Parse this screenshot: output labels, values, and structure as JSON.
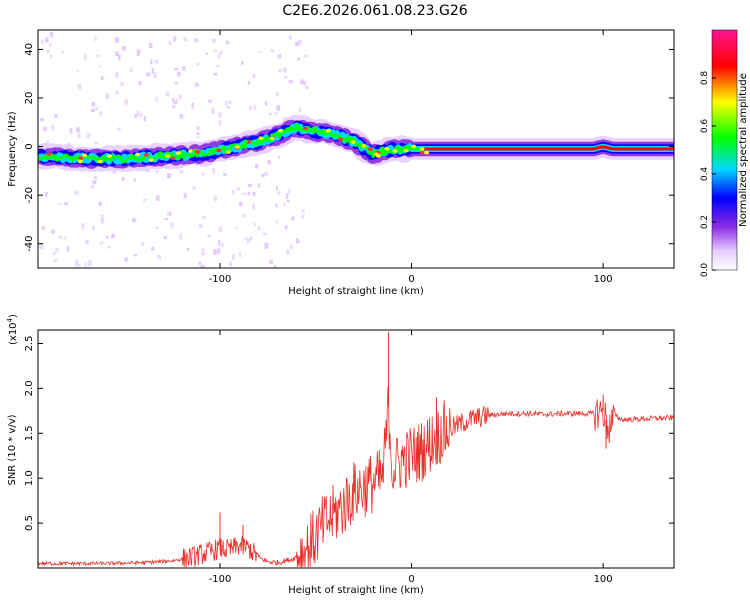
{
  "figure": {
    "title": "C2E6.2026.061.08.23.G26"
  },
  "chart_data": [
    {
      "type": "heatmap",
      "title": "C2E6.2026.061.08.23.G26",
      "xlabel": "Height of straight line (km)",
      "ylabel": "Frequency (Hz)",
      "xlim": [
        -195,
        137
      ],
      "ylim": [
        -50,
        48
      ],
      "x_ticks": [
        -100,
        0,
        100
      ],
      "y_ticks": [
        -40,
        -20,
        0,
        20,
        40
      ],
      "colorbar": {
        "label": "Normalized spectral amplitude",
        "range": [
          0,
          1
        ],
        "ticks": [
          0.0,
          0.2,
          0.4,
          0.6,
          0.8
        ],
        "colors": [
          "#ffffff",
          "#8a2be2",
          "#0000ff",
          "#00d8ff",
          "#00ff00",
          "#ffff00",
          "#ff0000",
          "#ff1493"
        ]
      },
      "ridge": {
        "description_points_x": [
          -195,
          -170,
          -150,
          -130,
          -110,
          -90,
          -75,
          -60,
          -50,
          -40,
          -30,
          -20,
          -15,
          -10,
          0,
          10,
          40,
          80,
          95,
          100,
          105,
          137
        ],
        "frequency_hz": [
          -4,
          -5,
          -5,
          -4,
          -3,
          0,
          3,
          8,
          6,
          5,
          2,
          -3,
          -2,
          -1,
          -1,
          -1,
          -1,
          -1,
          -1,
          0,
          -1,
          -1
        ]
      }
    },
    {
      "type": "line",
      "xlabel": "Height of straight line (km)",
      "ylabel": "SNR (10 * v/v)",
      "y_scale_label": "(x10",
      "y_scale_exp": "4",
      "y_scale_suffix": ")",
      "xlim": [
        -195,
        137
      ],
      "ylim": [
        0,
        2.65
      ],
      "x_ticks": [
        -100,
        0,
        100
      ],
      "y_ticks": [
        0.5,
        1.0,
        1.5,
        2.0,
        2.5
      ],
      "y_tick_labels": [
        "0.5",
        "1.0",
        "1.5",
        "2.0",
        "2.5"
      ],
      "series": [
        {
          "color": "#e8302a",
          "x": [
            -195,
            -180,
            -160,
            -140,
            -125,
            -115,
            -105,
            -100,
            -95,
            -90,
            -85,
            -80,
            -75,
            -70,
            -62,
            -55,
            -50,
            -45,
            -40,
            -35,
            -30,
            -25,
            -20,
            -15,
            -12,
            -10,
            -5,
            0,
            5,
            10,
            15,
            20,
            25,
            30,
            40,
            50,
            60,
            70,
            80,
            90,
            95,
            100,
            103,
            106,
            110,
            120,
            130,
            137
          ],
          "values": [
            0.05,
            0.05,
            0.05,
            0.06,
            0.08,
            0.12,
            0.18,
            0.22,
            0.2,
            0.25,
            0.22,
            0.12,
            0.07,
            0.06,
            0.1,
            0.2,
            0.35,
            0.5,
            0.6,
            0.7,
            0.85,
            0.9,
            0.95,
            1.0,
            1.8,
            1.1,
            1.2,
            1.25,
            1.3,
            1.4,
            1.5,
            1.55,
            1.6,
            1.65,
            1.7,
            1.72,
            1.72,
            1.71,
            1.72,
            1.72,
            1.72,
            1.75,
            1.55,
            1.7,
            1.65,
            1.66,
            1.67,
            1.67
          ],
          "spikes": [
            {
              "x": -100,
              "y": 0.62
            },
            {
              "x": -88,
              "y": 0.48
            },
            {
              "x": -12,
              "y": 2.63
            },
            {
              "x": 13,
              "y": 1.9
            },
            {
              "x": 100,
              "y": 1.93
            },
            {
              "x": 101.5,
              "y": 1.33
            }
          ]
        }
      ]
    }
  ]
}
